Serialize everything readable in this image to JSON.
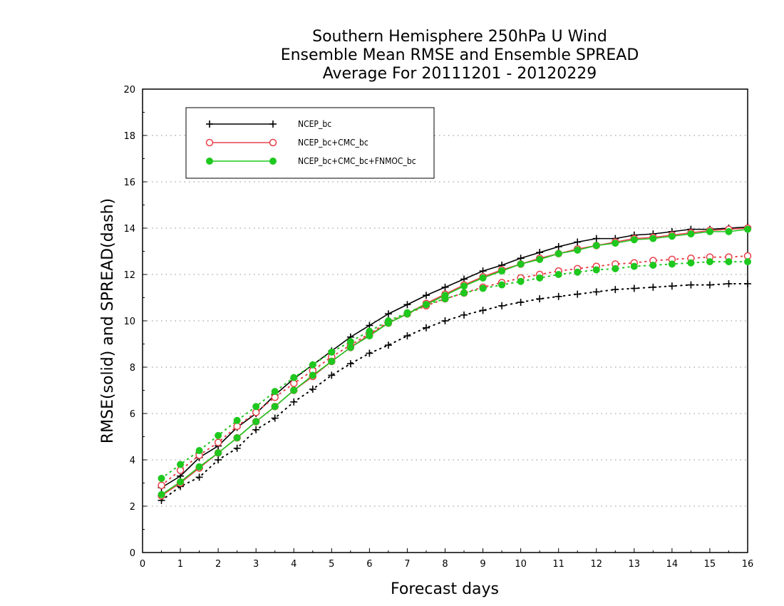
{
  "chart_data": {
    "type": "line",
    "title_lines": [
      "Southern Hemisphere 250hPa U Wind",
      "Ensemble Mean RMSE and Ensemble SPREAD",
      "Average For 20111201 - 20120229"
    ],
    "xlabel": "Forecast days",
    "ylabel": "RMSE(solid) and SPREAD(dash)",
    "xlim": [
      0,
      16
    ],
    "ylim": [
      0,
      20
    ],
    "xticks": [
      0,
      1,
      2,
      3,
      4,
      5,
      6,
      7,
      8,
      9,
      10,
      11,
      12,
      13,
      14,
      15,
      16
    ],
    "yticks": [
      0,
      2,
      4,
      6,
      8,
      10,
      12,
      14,
      16,
      18,
      20
    ],
    "grid": "horizontal dotted",
    "legend_position": "top-left",
    "x": [
      0.5,
      1,
      1.5,
      2,
      2.5,
      3,
      3.5,
      4,
      4.5,
      5,
      5.5,
      6,
      6.5,
      7,
      7.5,
      8,
      8.5,
      9,
      9.5,
      10,
      10.5,
      11,
      11.5,
      12,
      12.5,
      13,
      13.5,
      14,
      14.5,
      15,
      15.5,
      16
    ],
    "series": [
      {
        "name": "NCEP_bc",
        "color": "#000000",
        "marker": "plus",
        "rmse": [
          2.8,
          3.3,
          4.1,
          4.6,
          5.4,
          6.0,
          6.8,
          7.5,
          8.1,
          8.7,
          9.3,
          9.8,
          10.3,
          10.7,
          11.1,
          11.45,
          11.8,
          12.15,
          12.4,
          12.7,
          12.95,
          13.2,
          13.4,
          13.55,
          13.55,
          13.7,
          13.75,
          13.85,
          13.95,
          13.95,
          14.0,
          14.05
        ],
        "spread": [
          2.25,
          2.85,
          3.25,
          4.0,
          4.5,
          5.3,
          5.8,
          6.5,
          7.05,
          7.65,
          8.15,
          8.6,
          8.95,
          9.35,
          9.7,
          10.0,
          10.25,
          10.45,
          10.65,
          10.8,
          10.95,
          11.05,
          11.15,
          11.25,
          11.35,
          11.4,
          11.45,
          11.5,
          11.55,
          11.55,
          11.6,
          11.6
        ]
      },
      {
        "name": "NCEP_bc+CMC_bc",
        "color": "#e8404a",
        "marker": "open-circle",
        "rmse": [
          2.45,
          3.0,
          3.65,
          4.3,
          4.95,
          5.65,
          6.3,
          7.0,
          7.6,
          8.25,
          8.85,
          9.4,
          9.9,
          10.3,
          10.75,
          11.15,
          11.55,
          11.9,
          12.2,
          12.45,
          12.7,
          12.9,
          13.1,
          13.25,
          13.4,
          13.55,
          13.6,
          13.7,
          13.8,
          13.9,
          13.95,
          14.0
        ],
        "spread": [
          2.9,
          3.55,
          4.2,
          4.75,
          5.45,
          6.05,
          6.7,
          7.3,
          7.85,
          8.45,
          8.95,
          9.45,
          9.95,
          10.3,
          10.65,
          10.95,
          11.2,
          11.45,
          11.65,
          11.85,
          12.0,
          12.15,
          12.25,
          12.35,
          12.45,
          12.5,
          12.6,
          12.65,
          12.7,
          12.75,
          12.75,
          12.8
        ]
      },
      {
        "name": "NCEP_bc+CMC_bc+FNMOC_bc",
        "color": "#1ec81e",
        "marker": "filled-circle",
        "rmse": [
          2.5,
          3.05,
          3.7,
          4.3,
          4.95,
          5.65,
          6.3,
          7.0,
          7.65,
          8.25,
          8.85,
          9.35,
          9.9,
          10.3,
          10.7,
          11.1,
          11.5,
          11.85,
          12.15,
          12.45,
          12.65,
          12.9,
          13.05,
          13.25,
          13.35,
          13.5,
          13.55,
          13.65,
          13.75,
          13.85,
          13.85,
          13.95
        ],
        "spread": [
          3.2,
          3.8,
          4.4,
          5.05,
          5.7,
          6.3,
          6.95,
          7.55,
          8.1,
          8.65,
          9.1,
          9.55,
          10.0,
          10.35,
          10.7,
          10.95,
          11.2,
          11.4,
          11.55,
          11.7,
          11.85,
          12.0,
          12.1,
          12.2,
          12.25,
          12.35,
          12.4,
          12.45,
          12.5,
          12.55,
          12.55,
          12.55
        ]
      }
    ]
  }
}
